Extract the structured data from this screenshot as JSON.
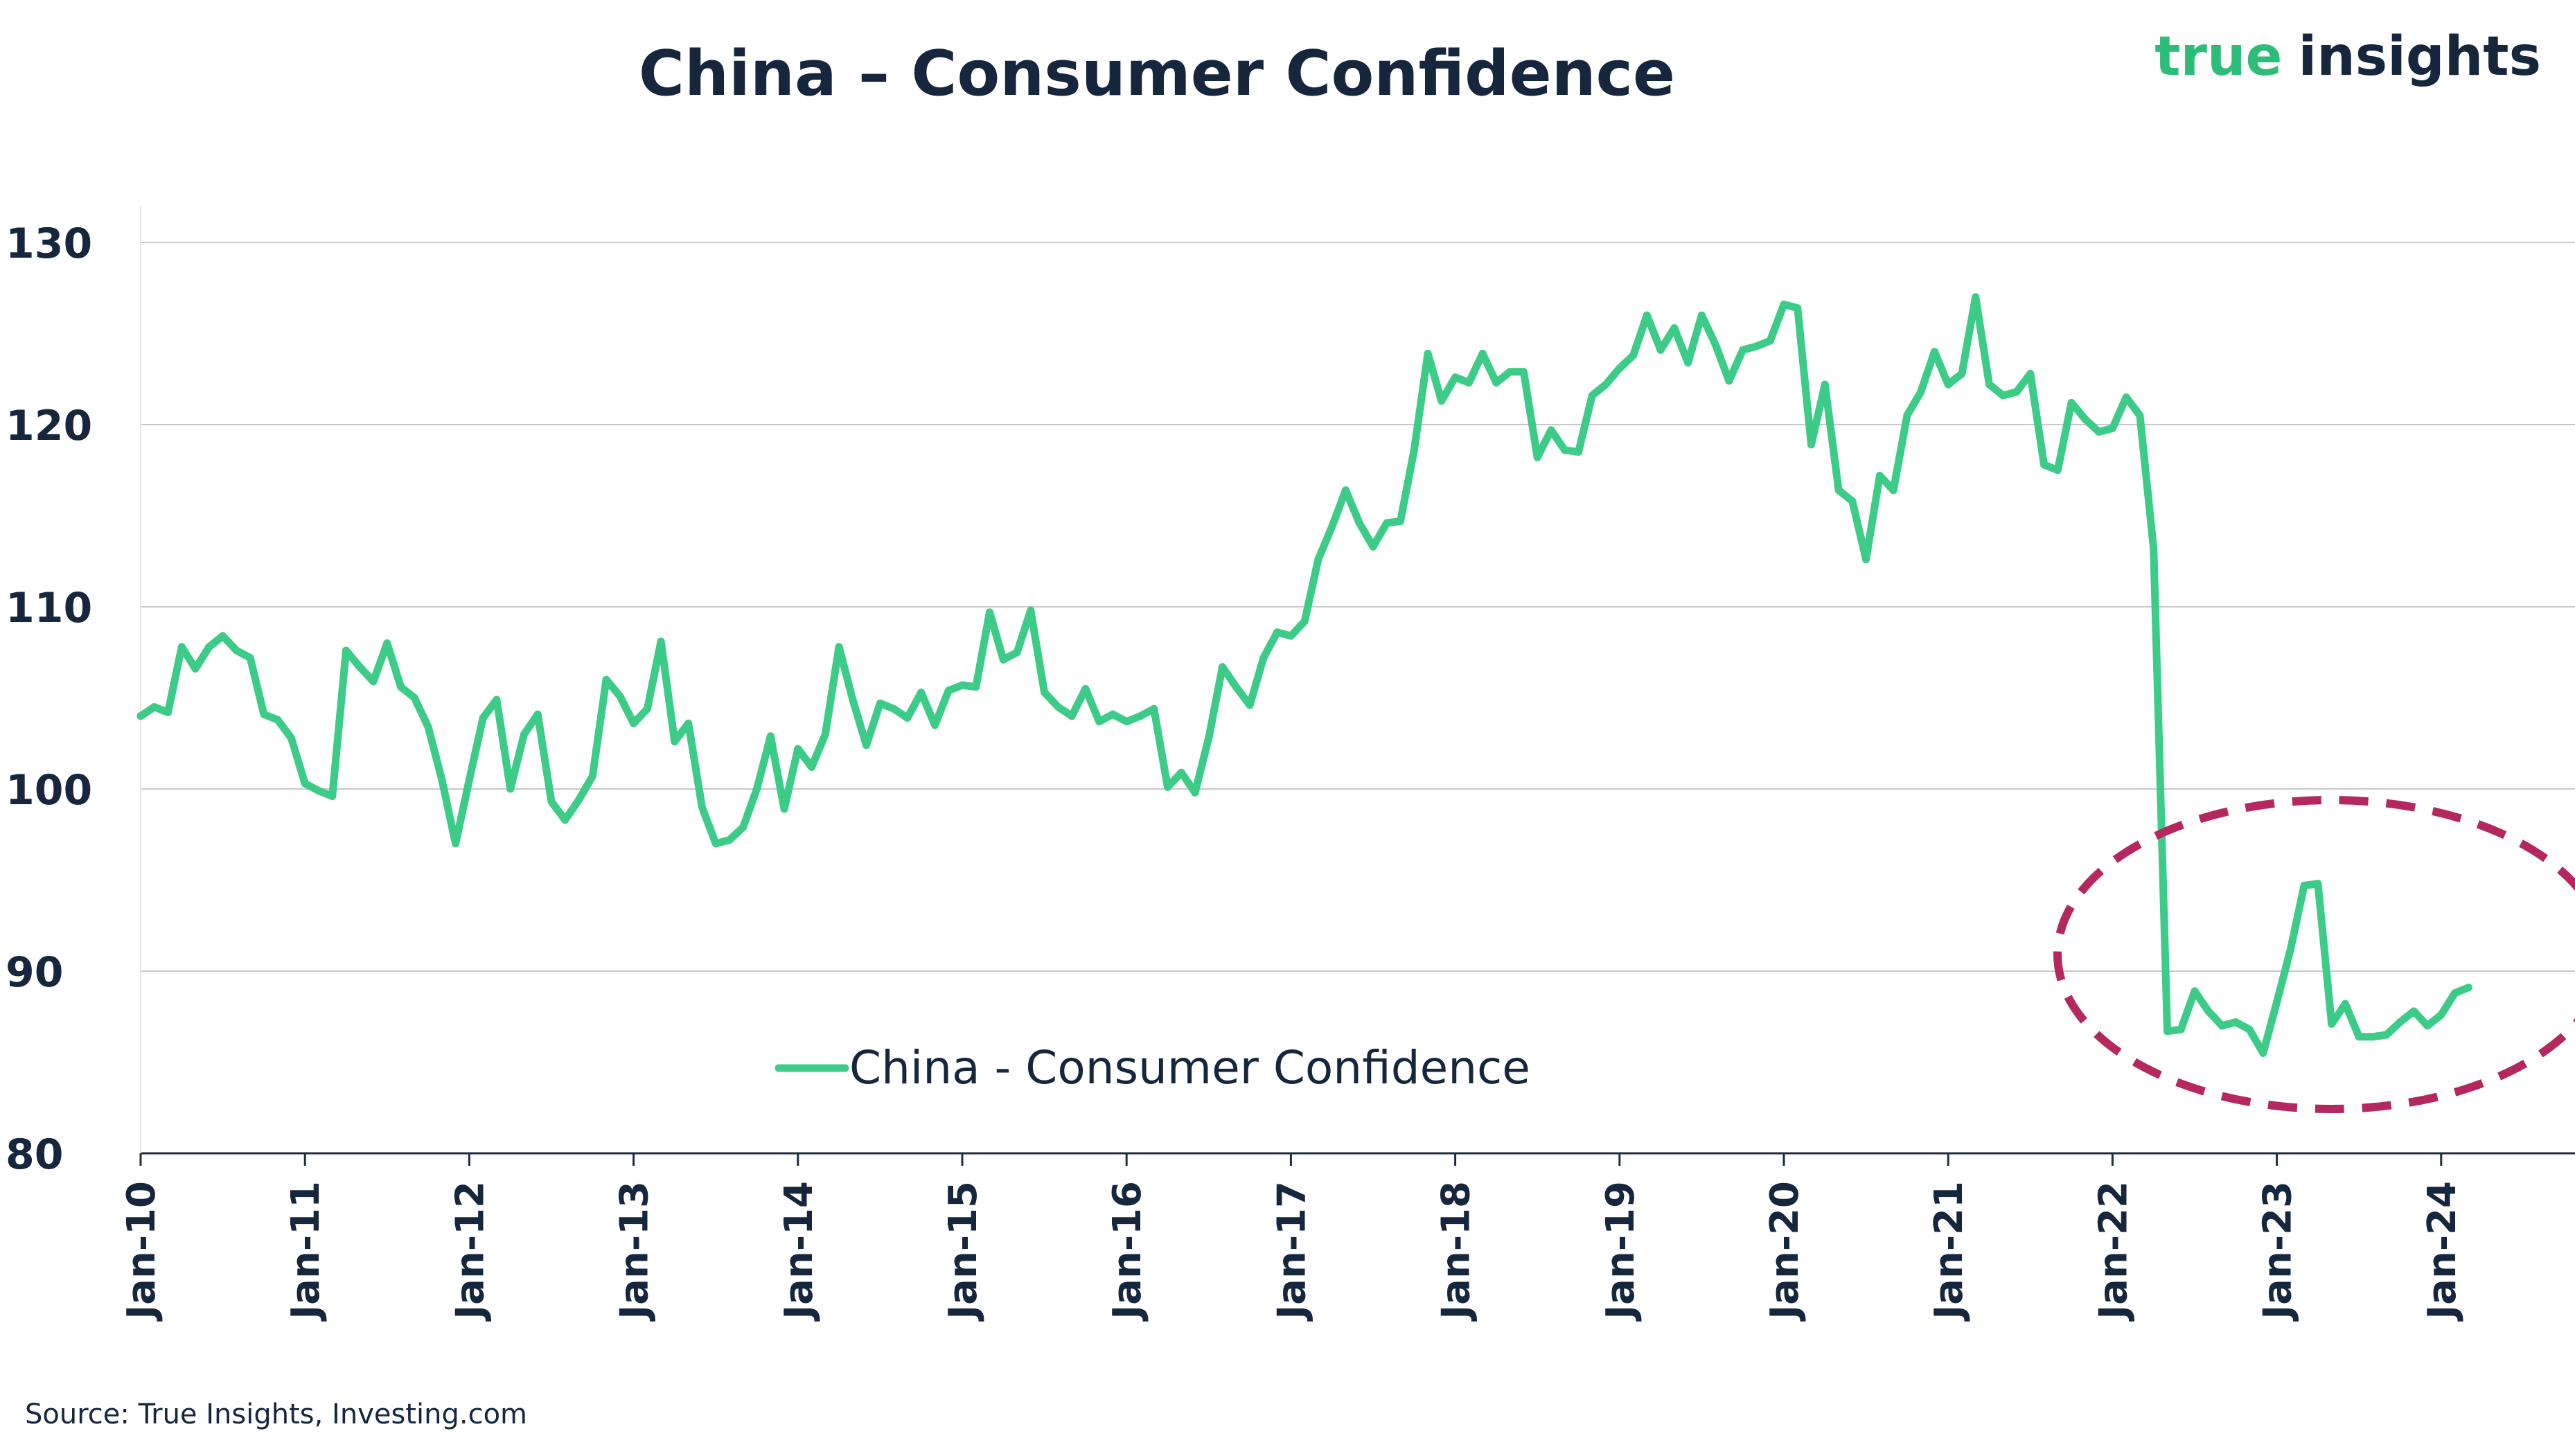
{
  "chart_data": {
    "type": "line",
    "title": "China – Consumer Confidence",
    "brand": {
      "part1": "true",
      "part2": "insights"
    },
    "source": "Source: True Insights, Investing.com",
    "xlabel": "",
    "ylabel": "",
    "ylim": [
      80,
      133
    ],
    "yticks": [
      80,
      90,
      100,
      110,
      120,
      130
    ],
    "xticks": [
      "Jan-10",
      "Jan-11",
      "Jan-12",
      "Jan-13",
      "Jan-14",
      "Jan-15",
      "Jan-16",
      "Jan-17",
      "Jan-18",
      "Jan-19",
      "Jan-20",
      "Jan-21",
      "Jan-22",
      "Jan-23",
      "Jan-24"
    ],
    "x_start": "Jan-10",
    "grid": true,
    "legend_position": "lower-left",
    "annotation": "dashed ellipse highlighting 2022–2024 low values",
    "colors": {
      "line": "#3dcc88",
      "title": "#16263d",
      "ellipse": "#b5285f",
      "brand_green": "#2ebd78",
      "grid": "#c8c8c8"
    },
    "series": [
      {
        "name": "China - Consumer Confidence",
        "values": [
          104.0,
          104.5,
          104.2,
          107.8,
          106.6,
          107.8,
          108.4,
          107.6,
          107.2,
          104.1,
          103.8,
          102.8,
          100.3,
          99.9,
          99.6,
          107.6,
          106.7,
          105.9,
          108.0,
          105.6,
          105.0,
          103.4,
          100.5,
          97.0,
          100.5,
          103.9,
          104.9,
          100.0,
          103.0,
          104.1,
          99.3,
          98.3,
          99.4,
          100.7,
          106.0,
          105.1,
          103.6,
          104.4,
          108.1,
          102.6,
          103.6,
          99.0,
          97.0,
          97.2,
          97.9,
          100.0,
          102.9,
          98.9,
          102.2,
          101.2,
          103.0,
          107.8,
          104.9,
          102.4,
          104.7,
          104.4,
          103.9,
          105.3,
          103.5,
          105.4,
          105.7,
          105.6,
          109.7,
          107.1,
          107.5,
          109.8,
          105.3,
          104.5,
          104.0,
          105.5,
          103.7,
          104.1,
          103.7,
          104.0,
          104.4,
          100.1,
          100.9,
          99.8,
          102.8,
          106.7,
          105.6,
          104.6,
          107.2,
          108.6,
          108.4,
          109.2,
          112.6,
          114.4,
          116.4,
          114.6,
          113.3,
          114.6,
          114.7,
          118.6,
          123.9,
          121.3,
          122.6,
          122.3,
          123.9,
          122.3,
          122.9,
          122.9,
          118.2,
          119.7,
          118.6,
          118.5,
          121.6,
          122.2,
          123.1,
          123.8,
          126.0,
          124.1,
          125.3,
          123.4,
          126.0,
          124.4,
          122.4,
          124.1,
          124.3,
          124.6,
          126.6,
          126.4,
          118.9,
          122.2,
          116.4,
          115.8,
          112.6,
          117.2,
          116.4,
          120.5,
          121.8,
          124.0,
          122.2,
          122.8,
          127.0,
          122.2,
          121.6,
          121.8,
          122.8,
          117.8,
          117.5,
          121.2,
          120.3,
          119.6,
          119.8,
          121.5,
          120.5,
          113.2,
          86.7,
          86.8,
          88.9,
          87.8,
          87.0,
          87.2,
          86.8,
          85.5,
          88.3,
          91.2,
          94.7,
          94.8,
          87.1,
          88.2,
          86.4,
          86.4,
          86.5,
          87.2,
          87.8,
          87.0,
          87.6,
          88.8,
          89.1
        ]
      }
    ]
  }
}
